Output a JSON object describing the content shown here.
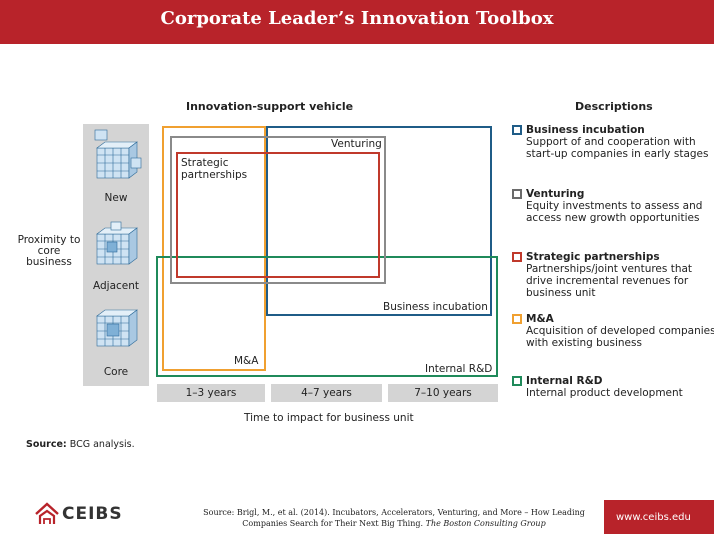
{
  "title": "Corporate Leader’s Innovation Toolbox",
  "chart": {
    "vehicle_header": "Innovation-support vehicle",
    "y_label": "Proximity to core business",
    "proximity_levels": [
      "New",
      "Adjacent",
      "Core"
    ],
    "x_label": "Time to impact for business unit",
    "time_ranges": [
      "1–3 years",
      "4–7 years",
      "7–10 years"
    ],
    "box_labels": {
      "venturing": "Venturing",
      "strategic": "Strategic partnerships",
      "business_incubation": "Business incubation",
      "mna": "M&A",
      "internal_rnd": "Internal R&D"
    }
  },
  "descriptions": {
    "header": "Descriptions",
    "items": [
      {
        "name": "Business incubation",
        "desc": "Support of and cooperation with start-up companies in early stages",
        "color": "#1f5c87"
      },
      {
        "name": "Venturing",
        "desc": "Equity investments to assess and access new growth opportunities",
        "color": "#6b6b6b"
      },
      {
        "name": "Strategic partnerships",
        "desc": "Partnerships/joint ventures that drive incremental revenues for business unit",
        "color": "#c0392b"
      },
      {
        "name": "M&A",
        "desc": "Acquisition of developed companies with existing business",
        "color": "#f0a030"
      },
      {
        "name": "Internal R&D",
        "desc": "Internal product development",
        "color": "#1f8a5a"
      }
    ]
  },
  "source_note": {
    "label": "Source:",
    "text": "BCG analysis."
  },
  "footer": {
    "logo_text": "CEIBS",
    "citation_line1": "Source: Brigl, M., et al. (2014). Incubators, Accelerators, Venturing, and More – How Leading",
    "citation_line2_plain": "Companies Search for Their Next Big Thing.",
    "citation_line2_italic": "The Boston Consulting Group",
    "url": "www.ceibs.edu"
  }
}
